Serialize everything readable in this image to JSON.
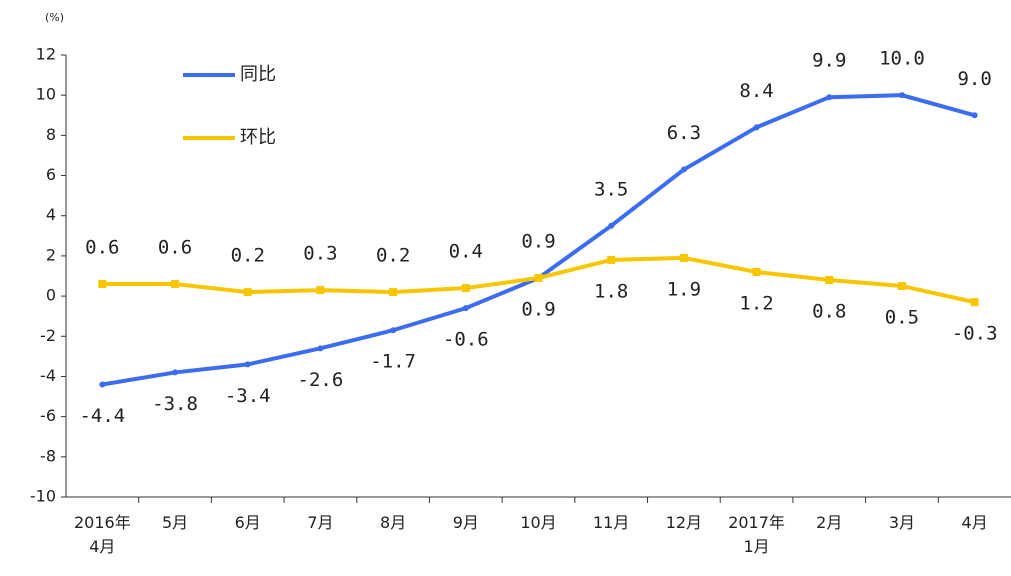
{
  "chart_data": {
    "type": "line",
    "y_label": "(%)",
    "categories": [
      "2016年\n4月",
      "5月",
      "6月",
      "7月",
      "8月",
      "9月",
      "10月",
      "11月",
      "12月",
      "2017年\n1月",
      "2月",
      "3月",
      "4月"
    ],
    "series": [
      {
        "name": "同比",
        "color": "#3b6cf2",
        "values": [
          -4.4,
          -3.8,
          -3.4,
          -2.6,
          -1.7,
          -0.6,
          0.9,
          3.5,
          6.3,
          8.4,
          9.9,
          10.0,
          9.0
        ],
        "value_labels": [
          "-4.4",
          "-3.8",
          "-3.4",
          "-2.6",
          "-1.7",
          "-0.6",
          "0.9",
          "3.5",
          "6.3",
          "8.4",
          "9.9",
          "10.0",
          "9.0"
        ]
      },
      {
        "name": "环比",
        "color": "#f7c600",
        "values": [
          0.6,
          0.6,
          0.2,
          0.3,
          0.2,
          0.4,
          0.9,
          1.8,
          1.9,
          1.2,
          0.8,
          0.5,
          -0.3
        ],
        "value_labels": [
          "0.6",
          "0.6",
          "0.2",
          "0.3",
          "0.2",
          "0.4",
          "0.9",
          "1.8",
          "1.9",
          "1.2",
          "0.8",
          "0.5",
          "-0.3"
        ]
      }
    ],
    "ylim": [
      -10,
      12
    ],
    "yticks": [
      -10,
      -8,
      -6,
      -4,
      -2,
      0,
      2,
      4,
      6,
      8,
      10,
      12
    ],
    "legend": "upper left"
  }
}
